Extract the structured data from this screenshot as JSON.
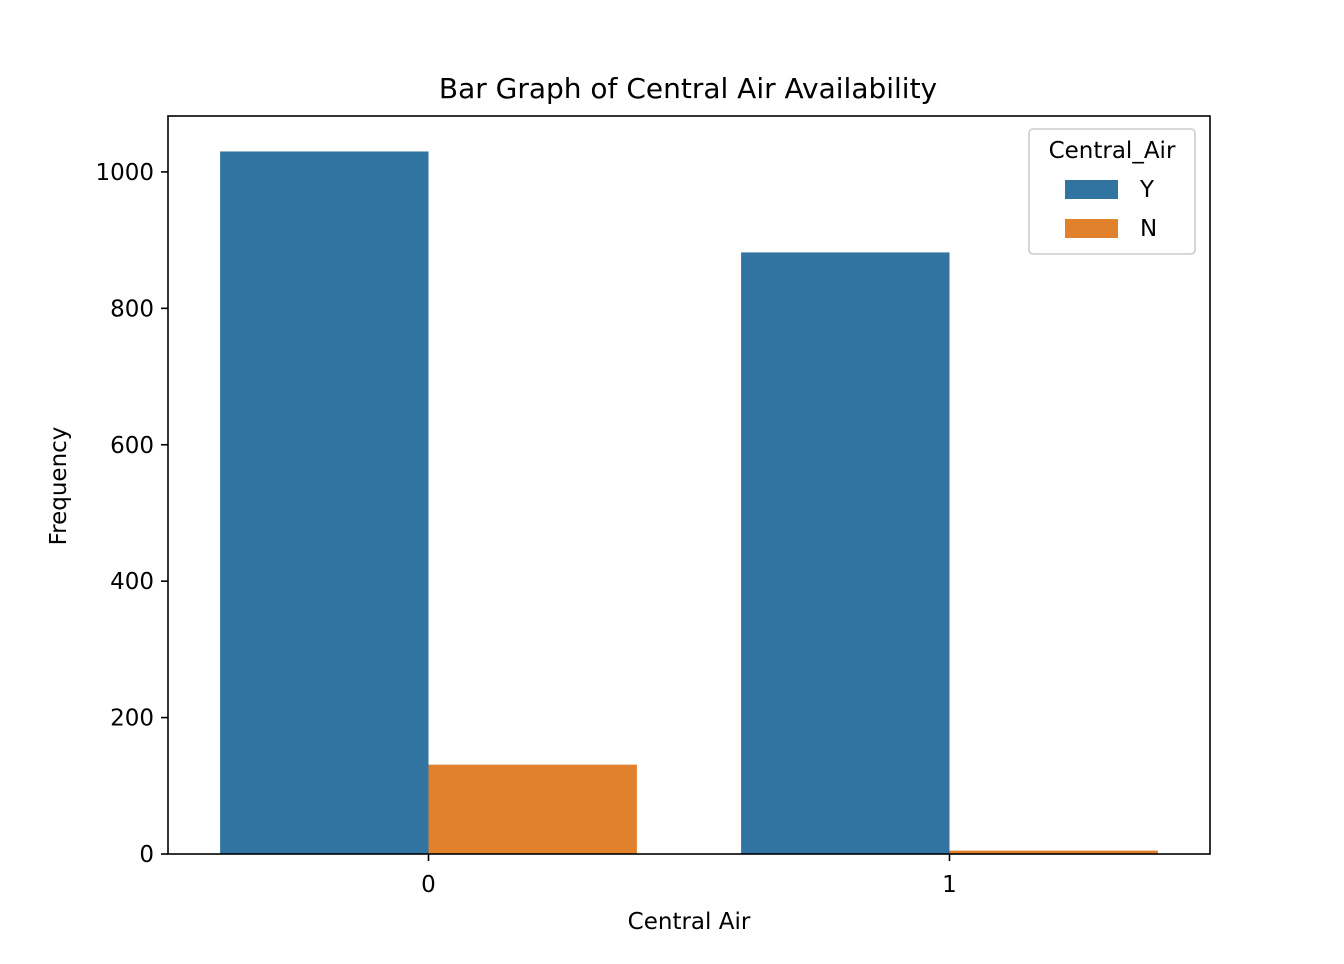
{
  "chart_data": {
    "type": "bar",
    "title": "Bar Graph of Central Air Availability",
    "xlabel": "Central Air",
    "ylabel": "Frequency",
    "categories": [
      "0",
      "1"
    ],
    "series": [
      {
        "name": "Y",
        "values": [
          1030,
          882
        ],
        "color": "#3274a1"
      },
      {
        "name": "N",
        "values": [
          131,
          5
        ],
        "color": "#e1812c"
      }
    ],
    "ylim": [
      0,
      1082
    ],
    "yticks": [
      0,
      200,
      400,
      600,
      800,
      1000
    ],
    "legend": {
      "title": "Central_Air",
      "placement": "top-right"
    },
    "grid": false
  }
}
